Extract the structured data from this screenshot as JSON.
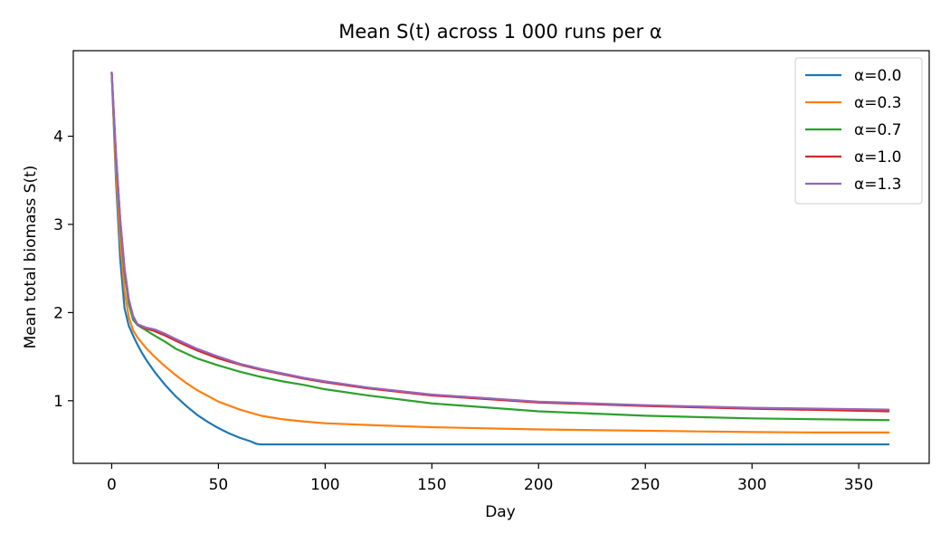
{
  "chart_data": {
    "type": "line",
    "title": "Mean S(t) across 1 000 runs per α",
    "xlabel": "Day",
    "ylabel": "Mean total biomass  S(t)",
    "xlim": [
      -18,
      383
    ],
    "ylim": [
      0.29,
      4.97
    ],
    "xticks": [
      0,
      50,
      100,
      150,
      200,
      250,
      300,
      350
    ],
    "xtick_labels": [
      "0",
      "50",
      "100",
      "150",
      "200",
      "250",
      "300",
      "350"
    ],
    "yticks": [
      1,
      2,
      3,
      4
    ],
    "ytick_labels": [
      "1",
      "2",
      "3",
      "4"
    ],
    "grid": false,
    "legend_position": "top-right",
    "series": [
      {
        "name": "α=0.0",
        "color": "#1f77b4",
        "x": [
          0,
          2,
          4,
          6,
          7,
          8,
          10,
          12,
          14,
          16,
          18,
          20,
          25,
          30,
          35,
          40,
          45,
          50,
          55,
          60,
          65,
          68,
          70,
          100,
          150,
          200,
          250,
          300,
          350,
          364
        ],
        "y": [
          4.72,
          3.5,
          2.6,
          2.05,
          1.95,
          1.85,
          1.74,
          1.64,
          1.55,
          1.47,
          1.4,
          1.33,
          1.18,
          1.05,
          0.94,
          0.84,
          0.76,
          0.69,
          0.63,
          0.58,
          0.54,
          0.51,
          0.505,
          0.505,
          0.505,
          0.505,
          0.505,
          0.505,
          0.505,
          0.505
        ]
      },
      {
        "name": "α=0.3",
        "color": "#ff7f0e",
        "x": [
          0,
          2,
          4,
          6,
          8,
          10,
          12,
          14,
          16,
          18,
          20,
          25,
          30,
          35,
          40,
          50,
          60,
          70,
          80,
          90,
          100,
          120,
          150,
          200,
          250,
          300,
          330,
          364
        ],
        "y": [
          4.72,
          3.6,
          2.8,
          2.25,
          1.95,
          1.8,
          1.72,
          1.66,
          1.6,
          1.55,
          1.5,
          1.39,
          1.29,
          1.2,
          1.12,
          0.99,
          0.9,
          0.83,
          0.79,
          0.765,
          0.745,
          0.725,
          0.7,
          0.675,
          0.66,
          0.645,
          0.64,
          0.64
        ]
      },
      {
        "name": "α=0.7",
        "color": "#2ca02c",
        "x": [
          0,
          2,
          4,
          6,
          8,
          10,
          12,
          14,
          16,
          18,
          20,
          25,
          30,
          40,
          50,
          60,
          70,
          80,
          90,
          100,
          120,
          150,
          200,
          250,
          300,
          364
        ],
        "y": [
          4.72,
          3.75,
          3.0,
          2.45,
          2.1,
          1.92,
          1.86,
          1.83,
          1.8,
          1.77,
          1.74,
          1.67,
          1.59,
          1.48,
          1.4,
          1.33,
          1.27,
          1.22,
          1.18,
          1.13,
          1.06,
          0.97,
          0.88,
          0.83,
          0.8,
          0.78
        ]
      },
      {
        "name": "α=1.0",
        "color": "#d62728",
        "x": [
          0,
          2,
          4,
          6,
          8,
          10,
          12,
          14,
          16,
          20,
          25,
          30,
          40,
          50,
          60,
          70,
          80,
          90,
          100,
          120,
          150,
          200,
          250,
          300,
          364
        ],
        "y": [
          4.72,
          3.8,
          3.05,
          2.5,
          2.15,
          1.96,
          1.87,
          1.84,
          1.82,
          1.79,
          1.74,
          1.68,
          1.57,
          1.48,
          1.41,
          1.35,
          1.3,
          1.25,
          1.21,
          1.14,
          1.06,
          0.98,
          0.94,
          0.91,
          0.88
        ]
      },
      {
        "name": "α=1.3",
        "color": "#9467bd",
        "x": [
          0,
          2,
          4,
          6,
          8,
          10,
          12,
          14,
          16,
          20,
          25,
          30,
          40,
          50,
          60,
          70,
          80,
          90,
          100,
          120,
          150,
          200,
          250,
          300,
          364
        ],
        "y": [
          4.72,
          3.8,
          3.05,
          2.5,
          2.15,
          1.96,
          1.87,
          1.85,
          1.83,
          1.81,
          1.76,
          1.7,
          1.59,
          1.5,
          1.42,
          1.36,
          1.31,
          1.26,
          1.22,
          1.15,
          1.07,
          0.99,
          0.95,
          0.92,
          0.9
        ]
      }
    ]
  }
}
